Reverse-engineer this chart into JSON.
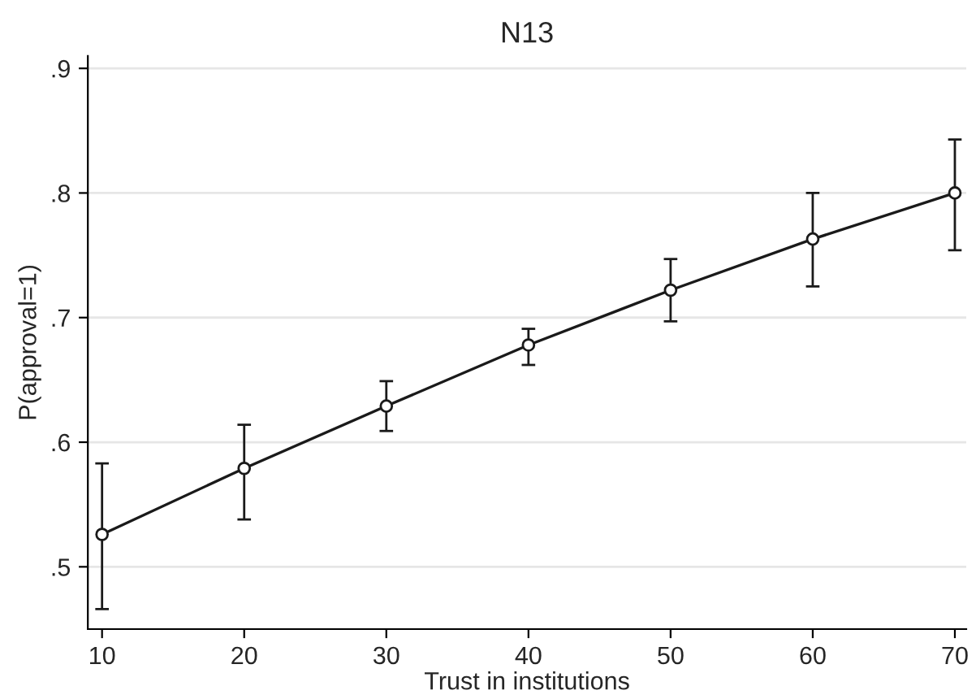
{
  "chart_data": {
    "type": "line",
    "title": "N13",
    "xlabel": "Trust in institutions",
    "ylabel": "P(approval=1)",
    "x": [
      10,
      20,
      30,
      40,
      50,
      60,
      70
    ],
    "series": [
      {
        "color": "#1a1a1a",
        "values": [
          0.526,
          0.579,
          0.629,
          0.678,
          0.722,
          0.763,
          0.8
        ],
        "errors": [
          [
            0.466,
            0.583
          ],
          [
            0.538,
            0.614
          ],
          [
            0.609,
            0.649
          ],
          [
            0.662,
            0.691
          ],
          [
            0.697,
            0.747
          ],
          [
            0.725,
            0.8
          ],
          [
            0.754,
            0.843
          ]
        ]
      }
    ],
    "marker": "circle",
    "line_style": "solid",
    "grid": "y",
    "legend": false,
    "xlim": [
      9,
      70.8
    ],
    "ylim": [
      0.45,
      0.91
    ],
    "xticks": [
      10,
      20,
      30,
      40,
      50,
      60,
      70
    ],
    "yticks": [
      {
        "value": 0.5,
        "label": ".5"
      },
      {
        "value": 0.6,
        "label": ".6"
      },
      {
        "value": 0.7,
        "label": ".7"
      },
      {
        "value": 0.8,
        "label": ".8"
      },
      {
        "value": 0.9,
        "label": ".9"
      }
    ]
  }
}
